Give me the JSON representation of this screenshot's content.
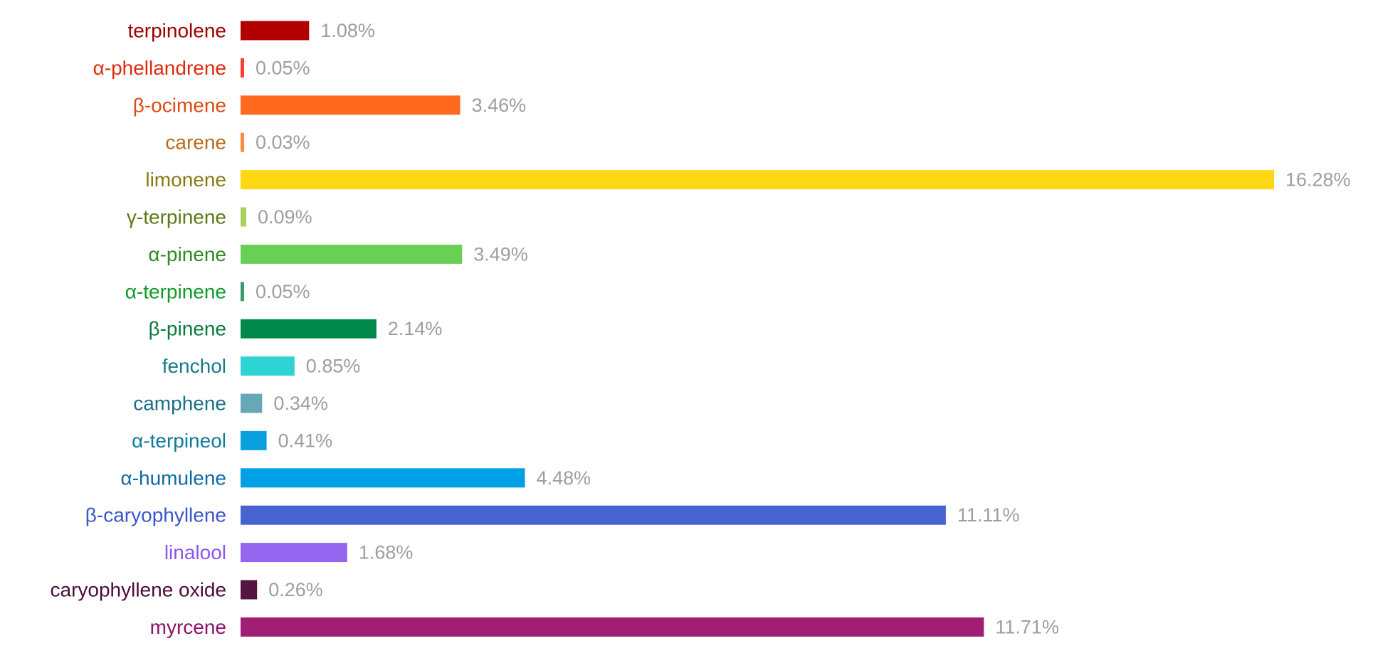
{
  "chart_data": {
    "type": "bar",
    "orientation": "horizontal",
    "title": "",
    "xlabel": "",
    "ylabel": "",
    "grid": false,
    "value_suffix": "%",
    "xlim": [
      0,
      16.28
    ],
    "categories": [
      "terpinolene",
      "α-phellandrene",
      "β-ocimene",
      "carene",
      "limonene",
      "γ-terpinene",
      "α-pinene",
      "α-terpinene",
      "β-pinene",
      "fenchol",
      "camphene",
      "α-terpineol",
      "α-humulene",
      "β-caryophyllene",
      "linalool",
      "caryophyllene oxide",
      "myrcene"
    ],
    "values": [
      1.08,
      0.05,
      3.46,
      0.03,
      16.28,
      0.09,
      3.49,
      0.05,
      2.14,
      0.85,
      0.34,
      0.41,
      4.48,
      11.11,
      1.68,
      0.26,
      11.71
    ],
    "value_labels": [
      "1.08%",
      "0.05%",
      "3.46%",
      "0.03%",
      "16.28%",
      "0.09%",
      "3.49%",
      "0.05%",
      "2.14%",
      "0.85%",
      "0.34%",
      "0.41%",
      "4.48%",
      "11.11%",
      "1.68%",
      "0.26%",
      "11.71%"
    ],
    "bar_colors": [
      "#b20000",
      "#ff3b30",
      "#ff6a1f",
      "#ff8a3d",
      "#ffd814",
      "#a6d45a",
      "#67d055",
      "#3a9b6e",
      "#00874a",
      "#2ed4d4",
      "#66a8b8",
      "#0aa0e0",
      "#00a0e6",
      "#4763cf",
      "#9466f0",
      "#551341",
      "#a01f74"
    ],
    "label_colors": [
      "#a00000",
      "#e02a10",
      "#dd4a14",
      "#b86a1a",
      "#8a7a14",
      "#5c7a18",
      "#2f8a22",
      "#119a2a",
      "#0a7a3c",
      "#1a7a86",
      "#1b6f86",
      "#107a9a",
      "#0e6aa8",
      "#3d55c8",
      "#8a57e8",
      "#4b0d36",
      "#8c1466"
    ],
    "value_label_color": "#9e9e9e"
  }
}
